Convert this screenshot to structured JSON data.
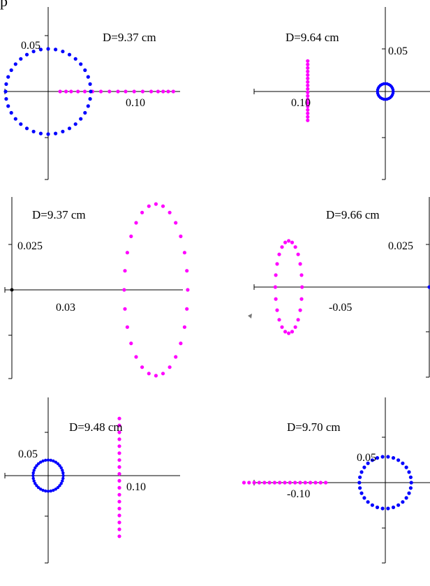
{
  "corner_text": "p",
  "colors": {
    "pink": "#ff00ff",
    "blue": "#0000ff",
    "axis": "#000000"
  },
  "chart_data": [
    {
      "type": "scatter",
      "title": "D=9.37 cm",
      "tick_labels": {
        "y": "0.05",
        "x": "0.10"
      },
      "series": [
        {
          "color": "pink",
          "points": [
            [
              0.014,
              0
            ],
            [
              0.021,
              0
            ],
            [
              0.027,
              0
            ],
            [
              0.035,
              0
            ],
            [
              0.043,
              0
            ],
            [
              0.052,
              0
            ],
            [
              0.062,
              0
            ],
            [
              0.072,
              0
            ],
            [
              0.082,
              0
            ],
            [
              0.091,
              0
            ],
            [
              0.101,
              0
            ],
            [
              0.111,
              0
            ],
            [
              0.121,
              0
            ],
            [
              0.129,
              0
            ],
            [
              0.135,
              0
            ],
            [
              0.141,
              0
            ],
            [
              0.147,
              0
            ]
          ]
        },
        {
          "color": "blue",
          "shape": "circle",
          "cx": 0,
          "cy": 0,
          "r": 0.05,
          "n": 36
        }
      ]
    },
    {
      "type": "scatter",
      "title": "D=9.64 cm",
      "tick_labels": {
        "y": "0.05",
        "x": "0.10"
      },
      "series": [
        {
          "color": "pink",
          "points": [
            [
              -0.089,
              0.035
            ],
            [
              -0.089,
              0.031
            ],
            [
              -0.089,
              0.027
            ],
            [
              -0.089,
              0.023
            ],
            [
              -0.089,
              0.019
            ],
            [
              -0.089,
              0.015
            ],
            [
              -0.089,
              0.011
            ],
            [
              -0.089,
              0.007
            ],
            [
              -0.089,
              0.003
            ],
            [
              -0.089,
              -0.001
            ],
            [
              -0.089,
              -0.005
            ],
            [
              -0.089,
              -0.009
            ],
            [
              -0.089,
              -0.013
            ],
            [
              -0.089,
              -0.017
            ],
            [
              -0.089,
              -0.021
            ],
            [
              -0.089,
              -0.025
            ],
            [
              -0.089,
              -0.029
            ],
            [
              -0.089,
              -0.033
            ]
          ]
        },
        {
          "color": "blue",
          "shape": "circle",
          "cx": 0,
          "cy": 0,
          "r": 0.009,
          "n": 28
        }
      ]
    },
    {
      "type": "scatter",
      "title": "D=9.37 cm",
      "tick_labels": {
        "y": "0.025",
        "x": "0.03"
      },
      "series": [
        {
          "color": "pink",
          "shape": "ellipse",
          "cx": 0.0635,
          "cy": 0,
          "rx": 0.014,
          "ry": 0.039,
          "n": 28
        }
      ]
    },
    {
      "type": "scatter",
      "title": "D=9.66 cm",
      "tick_labels": {
        "y": "0.025",
        "x": "-0.05"
      },
      "series": [
        {
          "color": "pink",
          "shape": "ellipse",
          "cx": -0.079,
          "cy": 0,
          "rx": 0.0075,
          "ry": 0.021,
          "n": 24
        },
        {
          "color": "blue",
          "points": [
            [
              0,
              0
            ]
          ]
        }
      ]
    },
    {
      "type": "scatter",
      "title": "D=9.48 cm",
      "tick_labels": {
        "y": "0.05",
        "x": "0.10"
      },
      "series": [
        {
          "color": "pink",
          "points": [
            [
              0.085,
              0.066
            ],
            [
              0.085,
              0.058
            ],
            [
              0.085,
              0.05
            ],
            [
              0.085,
              0.042
            ],
            [
              0.085,
              0.034
            ],
            [
              0.085,
              0.026
            ],
            [
              0.085,
              0.018
            ],
            [
              0.085,
              0.01
            ],
            [
              0.085,
              0.002
            ],
            [
              0.085,
              -0.006
            ],
            [
              0.085,
              -0.014
            ],
            [
              0.085,
              -0.022
            ],
            [
              0.085,
              -0.03
            ],
            [
              0.085,
              -0.038
            ],
            [
              0.085,
              -0.046
            ],
            [
              0.085,
              -0.054
            ],
            [
              0.085,
              -0.062
            ],
            [
              0.085,
              -0.07
            ]
          ]
        },
        {
          "color": "blue",
          "shape": "circle",
          "cx": 0,
          "cy": 0,
          "r": 0.018,
          "n": 36
        }
      ]
    },
    {
      "type": "scatter",
      "title": "D=9.70 cm",
      "tick_labels": {
        "y": "0.05",
        "x": "-0.10"
      },
      "series": [
        {
          "color": "pink",
          "points": [
            [
              -0.166,
              0
            ],
            [
              -0.16,
              0
            ],
            [
              -0.154,
              0
            ],
            [
              -0.148,
              0
            ],
            [
              -0.142,
              0
            ],
            [
              -0.136,
              0
            ],
            [
              -0.13,
              0
            ],
            [
              -0.124,
              0
            ],
            [
              -0.118,
              0
            ],
            [
              -0.112,
              0
            ],
            [
              -0.106,
              0
            ],
            [
              -0.1,
              0
            ],
            [
              -0.094,
              0
            ],
            [
              -0.088,
              0
            ],
            [
              -0.082,
              0
            ],
            [
              -0.076,
              0
            ],
            [
              -0.07,
              0
            ]
          ]
        },
        {
          "color": "blue",
          "shape": "circle",
          "cx": 0,
          "cy": 0,
          "r": 0.0305,
          "n": 30
        }
      ]
    }
  ]
}
